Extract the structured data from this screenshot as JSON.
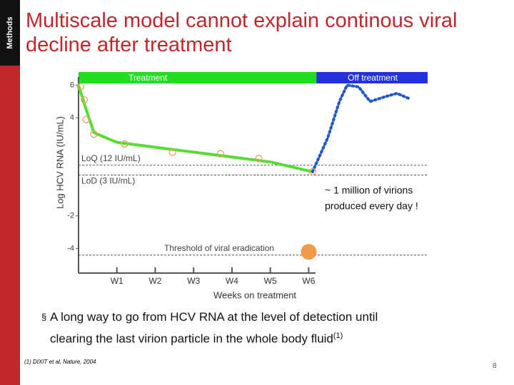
{
  "sidebar": {
    "label": "Methods"
  },
  "title": [
    "Multiscale model cannot explain continous viral",
    "decline after treatment"
  ],
  "chart_data": {
    "type": "line",
    "xlabel": "Weeks on treatment",
    "ylabel": "Log HCV RNA (IU/mL)",
    "xlim": [
      0,
      9.1
    ],
    "ylim": [
      -5.5,
      6.5
    ],
    "xticks": [
      {
        "value": 1,
        "label": "W1"
      },
      {
        "value": 2,
        "label": "W2"
      },
      {
        "value": 3,
        "label": "W3"
      },
      {
        "value": 4,
        "label": "W4"
      },
      {
        "value": 5,
        "label": "W5"
      },
      {
        "value": 6,
        "label": "W6"
      }
    ],
    "yticks": [
      6,
      4,
      -2,
      -4
    ],
    "bands": [
      {
        "label": "Treatment",
        "start": 0,
        "end": 6.2,
        "color": "#22dd22"
      },
      {
        "label": "Off treatment",
        "start": 6.2,
        "end": 9.1,
        "color": "#2233dd"
      }
    ],
    "reference_lines": [
      {
        "label": "LoQ (12 IU/mL)",
        "value": 1.1
      },
      {
        "label": "LoD (3 IU/mL)",
        "value": 0.5
      },
      {
        "label": "Threshold of viral eradication",
        "value": -4.4
      }
    ],
    "model": {
      "color": "#55dd33",
      "x": [
        0,
        0.2,
        0.4,
        1,
        2,
        3,
        4,
        5,
        6.1
      ],
      "values": [
        6,
        4.5,
        3.1,
        2.5,
        2.2,
        1.9,
        1.6,
        1.3,
        0.7
      ]
    },
    "rebound": {
      "color": "#2255cc",
      "x": [
        6.1,
        6.5,
        6.8,
        7.0,
        7.3,
        7.6,
        8.0,
        8.3,
        8.6
      ],
      "values": [
        0.7,
        2.8,
        5.0,
        6.0,
        5.9,
        5.0,
        5.3,
        5.5,
        5.2
      ]
    },
    "observed": {
      "color": "#e8a060",
      "x": [
        0.05,
        0.15,
        0.2,
        0.4,
        1.2,
        2.45,
        3.7,
        4.7,
        6.1
      ],
      "values": [
        5.9,
        5.1,
        3.9,
        3.0,
        2.4,
        1.9,
        1.8,
        1.5,
        0.7
      ]
    },
    "eradication_point": {
      "color": "#f39a4a",
      "x": 6.0,
      "y": -4.2
    },
    "annotation": [
      "~ 1 million of virions",
      "produced every day !"
    ]
  },
  "bullet": {
    "symbol": "§",
    "lines": [
      "A long way to go from HCV RNA at the level of detection until",
      "clearing the last virion particle in the whole body fluid"
    ],
    "note": "(1)"
  },
  "footnote": "(1) DIXIT et al, Nature, 2004",
  "page_number": "8"
}
